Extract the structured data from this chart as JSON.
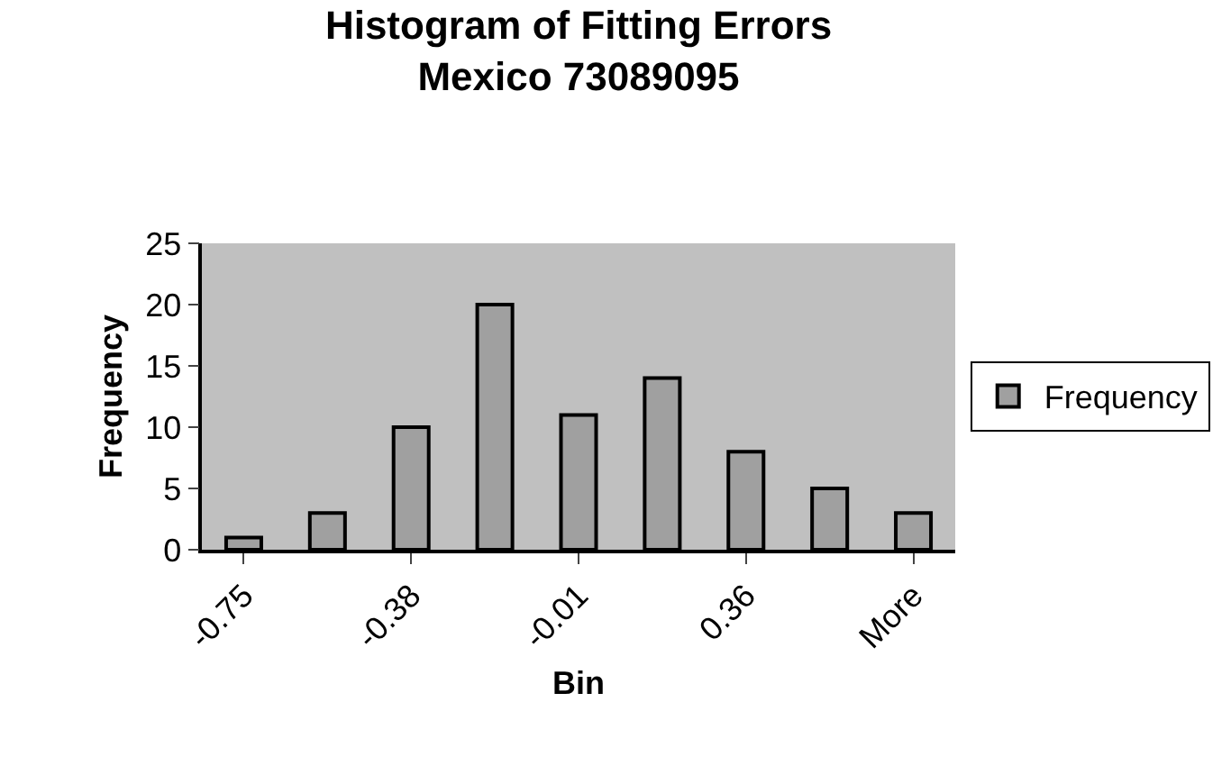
{
  "chart_data": {
    "type": "bar",
    "title": "Histogram of Fitting Errors\nMexico 73089095",
    "xlabel": "Bin",
    "ylabel": "Frequency",
    "categories": [
      "-0.75",
      null,
      "-0.38",
      null,
      "-0.01",
      null,
      "0.36",
      null,
      "More"
    ],
    "series": [
      {
        "name": "Frequency",
        "color": "#a0a0a0",
        "values": [
          1,
          3,
          10,
          20,
          11,
          14,
          8,
          5,
          3
        ]
      }
    ],
    "ylim": [
      0,
      25
    ],
    "yticks": [
      0,
      5,
      10,
      15,
      20,
      25
    ],
    "grid": false,
    "legend": "right"
  }
}
